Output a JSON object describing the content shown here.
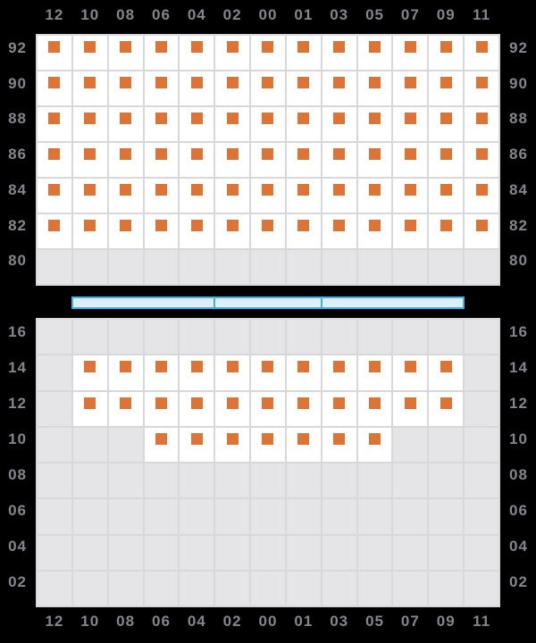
{
  "colors": {
    "background": "#000000",
    "cell_available_bg": "#ffffff",
    "cell_unavailable_bg": "#e5e4e7",
    "grid_line": "#d8d7da",
    "label_text": "#85858d",
    "stock_square": "#dd7436",
    "scrollbar_border": "#3fb3e8",
    "scrollbar_fill": "#ddeefa"
  },
  "column_labels": [
    "12",
    "10",
    "08",
    "06",
    "04",
    "02",
    "00",
    "01",
    "03",
    "05",
    "07",
    "09",
    "11"
  ],
  "top_grid": {
    "row_labels": [
      "92",
      "90",
      "88",
      "86",
      "84",
      "82",
      "80"
    ],
    "rows": [
      {
        "label": "92",
        "cells": [
          1,
          1,
          1,
          1,
          1,
          1,
          1,
          1,
          1,
          1,
          1,
          1,
          1
        ]
      },
      {
        "label": "90",
        "cells": [
          1,
          1,
          1,
          1,
          1,
          1,
          1,
          1,
          1,
          1,
          1,
          1,
          1
        ]
      },
      {
        "label": "88",
        "cells": [
          1,
          1,
          1,
          1,
          1,
          1,
          1,
          1,
          1,
          1,
          1,
          1,
          1
        ]
      },
      {
        "label": "86",
        "cells": [
          1,
          1,
          1,
          1,
          1,
          1,
          1,
          1,
          1,
          1,
          1,
          1,
          1
        ]
      },
      {
        "label": "84",
        "cells": [
          1,
          1,
          1,
          1,
          1,
          1,
          1,
          1,
          1,
          1,
          1,
          1,
          1
        ]
      },
      {
        "label": "82",
        "cells": [
          1,
          1,
          1,
          1,
          1,
          1,
          1,
          1,
          1,
          1,
          1,
          1,
          1
        ]
      },
      {
        "label": "80",
        "cells": [
          0,
          0,
          0,
          0,
          0,
          0,
          0,
          0,
          0,
          0,
          0,
          0,
          0
        ]
      }
    ]
  },
  "scrollbar": {
    "segment_widths": [
      160,
      120,
      160
    ]
  },
  "bottom_grid": {
    "row_labels": [
      "16",
      "14",
      "12",
      "10",
      "08",
      "06",
      "04",
      "02"
    ],
    "rows": [
      {
        "label": "16",
        "cells": [
          0,
          0,
          0,
          0,
          0,
          0,
          0,
          0,
          0,
          0,
          0,
          0,
          0
        ]
      },
      {
        "label": "14",
        "cells": [
          0,
          1,
          1,
          1,
          1,
          1,
          1,
          1,
          1,
          1,
          1,
          1,
          0
        ]
      },
      {
        "label": "12",
        "cells": [
          0,
          1,
          1,
          1,
          1,
          1,
          1,
          1,
          1,
          1,
          1,
          1,
          0
        ]
      },
      {
        "label": "10",
        "cells": [
          0,
          0,
          0,
          1,
          1,
          1,
          1,
          1,
          1,
          1,
          0,
          0,
          0
        ]
      },
      {
        "label": "08",
        "cells": [
          0,
          0,
          0,
          0,
          0,
          0,
          0,
          0,
          0,
          0,
          0,
          0,
          0
        ]
      },
      {
        "label": "06",
        "cells": [
          0,
          0,
          0,
          0,
          0,
          0,
          0,
          0,
          0,
          0,
          0,
          0,
          0
        ]
      },
      {
        "label": "04",
        "cells": [
          0,
          0,
          0,
          0,
          0,
          0,
          0,
          0,
          0,
          0,
          0,
          0,
          0
        ]
      },
      {
        "label": "02",
        "cells": [
          0,
          0,
          0,
          0,
          0,
          0,
          0,
          0,
          0,
          0,
          0,
          0,
          0
        ]
      }
    ]
  }
}
